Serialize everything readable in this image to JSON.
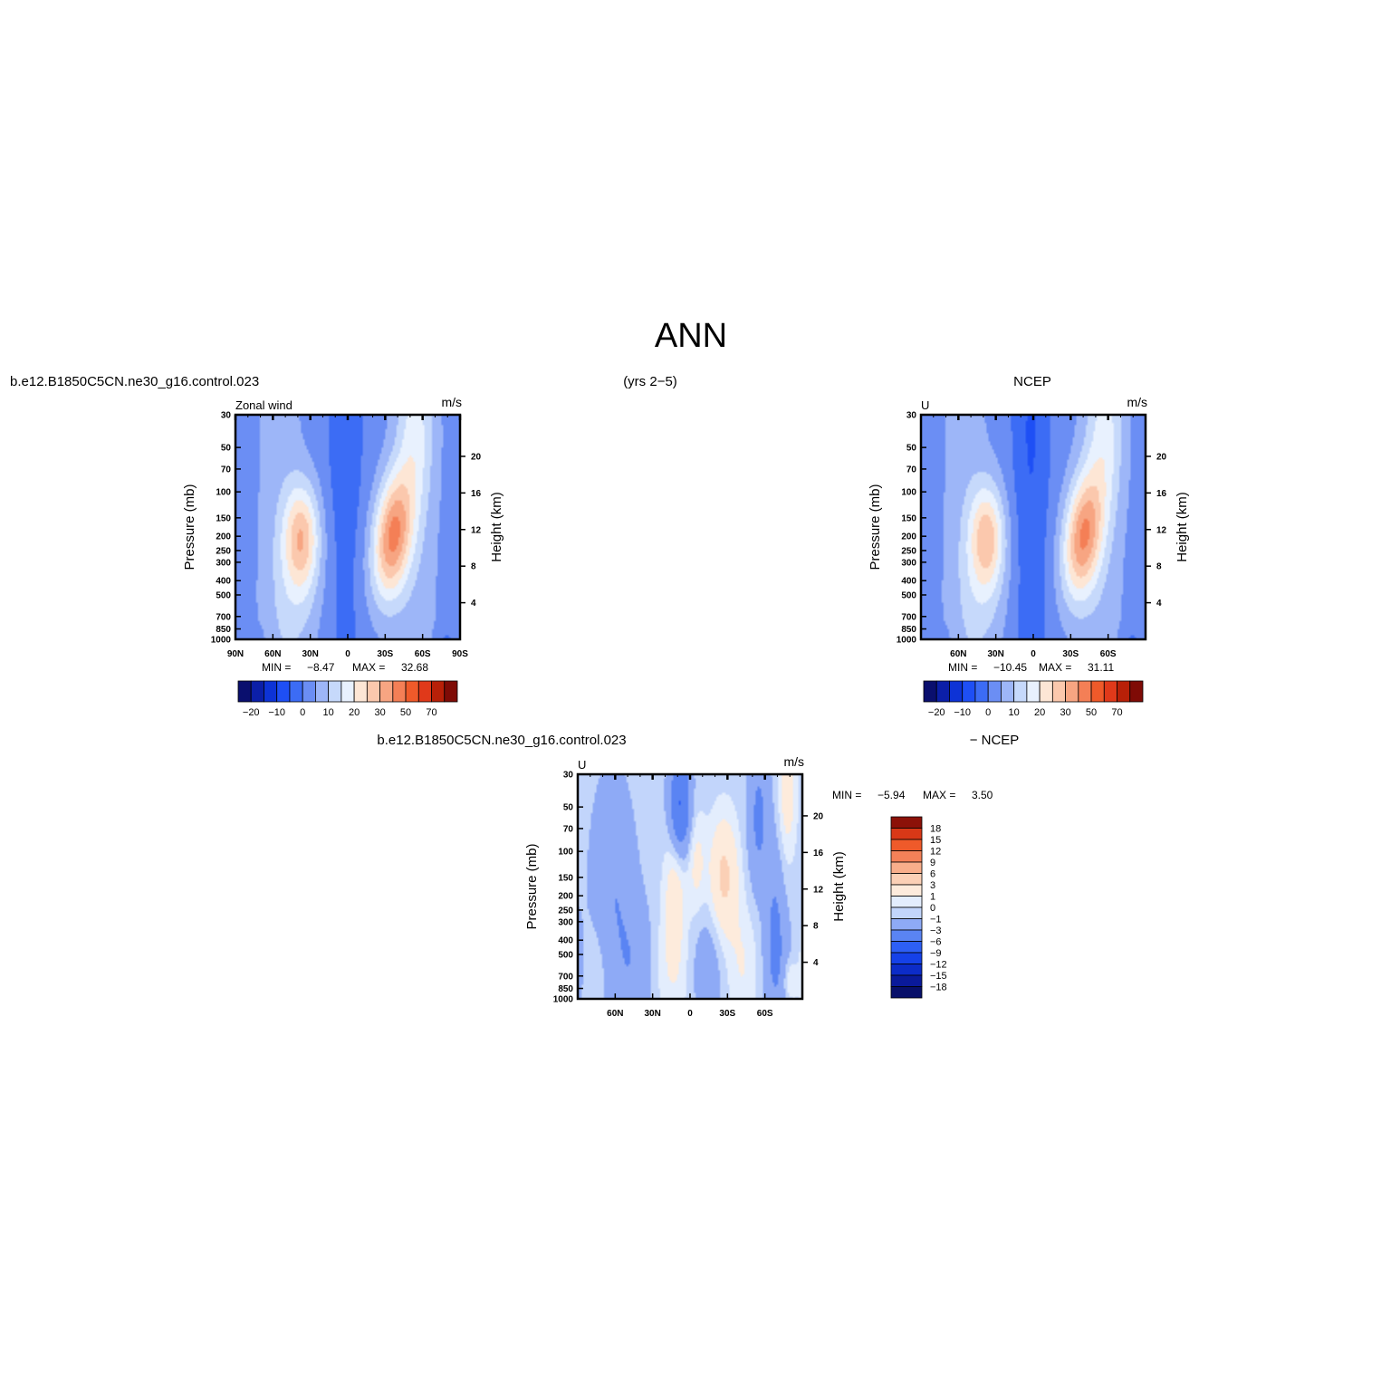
{
  "page": {
    "title": "ANN",
    "case_name": "b.e12.B1850C5CN.ne30_g16.control.023",
    "years_label": "(yrs 2−5)",
    "obs_name": "NCEP",
    "diff_case_name": "b.e12.B1850C5CN.ne30_g16.control.023",
    "diff_obs_label": "− NCEP"
  },
  "chart_data": [
    {
      "type": "heatmap",
      "id": "model",
      "subtitle_left": "Zonal wind",
      "units": "m/s",
      "ylabel": "Pressure (mb)",
      "ylabel_right": "Height (km)",
      "x_ticks": [
        "90N",
        "60N",
        "30N",
        "0",
        "30S",
        "60S",
        "90S"
      ],
      "x_tick_lats": [
        90,
        60,
        30,
        0,
        -30,
        -60,
        -90
      ],
      "y_ticks": [
        30,
        50,
        70,
        100,
        150,
        200,
        250,
        300,
        400,
        500,
        700,
        850,
        1000
      ],
      "height_ticks": [
        4,
        8,
        12,
        16,
        20
      ],
      "xlim": [
        90,
        -90
      ],
      "ylim_mb": [
        1000,
        30
      ],
      "min_label": "MIN =",
      "min_value": "−8.47",
      "max_label": "MAX =",
      "max_value": "32.68",
      "colorbar": {
        "orientation": "horizontal",
        "labels": [
          "−20",
          "−10",
          "0",
          "10",
          "20",
          "30",
          "50",
          "70"
        ],
        "levels": [
          -25,
          -20,
          -15,
          -10,
          -5,
          0,
          5,
          10,
          15,
          20,
          25,
          30,
          40,
          50,
          60,
          70
        ],
        "colors": [
          "#0a0f6e",
          "#0b1fa8",
          "#0d33d6",
          "#1e4ff5",
          "#3c6cf5",
          "#6b8ef4",
          "#9db6f8",
          "#c6d9fb",
          "#e8f1fe",
          "#fde6d5",
          "#fbc8ad",
          "#f7a582",
          "#f47f56",
          "#ef5a2a",
          "#e0391a",
          "#b82008",
          "#7f0b06"
        ]
      },
      "jets": [
        {
          "lat": -36,
          "p": 200,
          "peak": 32.68
        },
        {
          "lat": 37,
          "p": 200,
          "peak": 23
        }
      ],
      "easterly_min": -8.47
    },
    {
      "type": "heatmap",
      "id": "obs",
      "subtitle_left": "U",
      "units": "m/s",
      "ylabel": "Pressure (mb)",
      "ylabel_right": "Height (km)",
      "x_ticks": [
        "60N",
        "30N",
        "0",
        "30S",
        "60S"
      ],
      "x_tick_lats": [
        60,
        30,
        0,
        -30,
        -60
      ],
      "y_ticks": [
        30,
        50,
        70,
        100,
        150,
        200,
        250,
        300,
        400,
        500,
        700,
        850,
        1000
      ],
      "height_ticks": [
        4,
        8,
        12,
        16,
        20
      ],
      "xlim": [
        90,
        -90
      ],
      "ylim_mb": [
        1000,
        30
      ],
      "min_label": "MIN =",
      "min_value": "−10.45",
      "max_label": "MAX =",
      "max_value": "31.11",
      "colorbar": {
        "orientation": "horizontal",
        "labels": [
          "−20",
          "−10",
          "0",
          "10",
          "20",
          "30",
          "50",
          "70"
        ],
        "levels": [
          -25,
          -20,
          -15,
          -10,
          -5,
          0,
          5,
          10,
          15,
          20,
          25,
          30,
          40,
          50,
          60,
          70
        ],
        "colors": [
          "#0a0f6e",
          "#0b1fa8",
          "#0d33d6",
          "#1e4ff5",
          "#3c6cf5",
          "#6b8ef4",
          "#9db6f8",
          "#c6d9fb",
          "#e8f1fe",
          "#fde6d5",
          "#fbc8ad",
          "#f7a582",
          "#f47f56",
          "#ef5a2a",
          "#e0391a",
          "#b82008",
          "#7f0b06"
        ]
      },
      "jets": [
        {
          "lat": -40,
          "p": 200,
          "peak": 31.11
        },
        {
          "lat": 37,
          "p": 200,
          "peak": 22
        }
      ],
      "easterly_min": -10.45
    },
    {
      "type": "heatmap",
      "id": "diff",
      "subtitle_left": "U",
      "units": "m/s",
      "ylabel": "Pressure (mb)",
      "ylabel_right": "Height (km)",
      "x_ticks": [
        "60N",
        "30N",
        "0",
        "30S",
        "60S"
      ],
      "x_tick_lats": [
        60,
        30,
        0,
        -30,
        -60
      ],
      "y_ticks": [
        30,
        50,
        70,
        100,
        150,
        200,
        250,
        300,
        400,
        500,
        700,
        850,
        1000
      ],
      "height_ticks": [
        4,
        8,
        12,
        16,
        20
      ],
      "xlim": [
        90,
        -90
      ],
      "ylim_mb": [
        1000,
        30
      ],
      "min_label": "MIN =",
      "min_value": "−5.94",
      "max_label": "MAX =",
      "max_value": "3.50",
      "colorbar": {
        "orientation": "vertical",
        "labels": [
          "18",
          "15",
          "12",
          "9",
          "6",
          "3",
          "1",
          "0",
          "−1",
          "−3",
          "−6",
          "−9",
          "−12",
          "−15",
          "−18"
        ],
        "levels": [
          -18,
          -15,
          -12,
          -9,
          -6,
          -3,
          -1,
          0,
          1,
          3,
          6,
          9,
          12,
          15,
          18
        ],
        "colors": [
          "#08106a",
          "#0a1a9a",
          "#0c2cc8",
          "#1541e8",
          "#2d5ff5",
          "#5a84f3",
          "#8eaaf6",
          "#c2d5fb",
          "#e3edfd",
          "#fdebdc",
          "#fbd0b6",
          "#f8ae8b",
          "#f48158",
          "#ef5a2a",
          "#d93817",
          "#8c1108"
        ]
      }
    }
  ]
}
